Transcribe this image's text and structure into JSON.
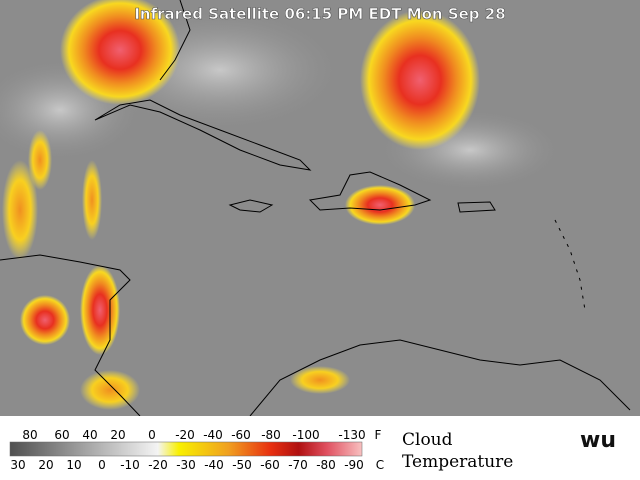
{
  "title": "Infrared Satellite 06:15 PM EDT Mon Sep 28",
  "legend": {
    "fahrenheit": [
      80,
      60,
      40,
      20,
      0,
      -20,
      -40,
      -60,
      -80,
      -100,
      -130
    ],
    "fahrenheit_unit": "F",
    "celsius": [
      30,
      20,
      10,
      0,
      -10,
      -20,
      -30,
      -40,
      -50,
      -60,
      -70,
      -80,
      -90
    ],
    "celsius_unit": "C",
    "label_line1": "Cloud",
    "label_line2": "Temperature"
  },
  "logo": "wu"
}
